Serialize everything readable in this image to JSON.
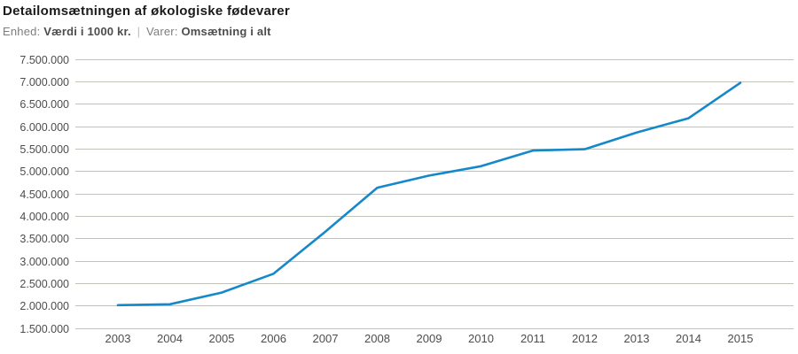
{
  "header": {
    "title": "Detailomsætningen af økologiske fødevarer",
    "meta": {
      "unit_label": "Enhed:",
      "unit_value": "Værdi i 1000 kr.",
      "separator": "|",
      "varer_label": "Varer:",
      "varer_value": "Omsætning i alt"
    }
  },
  "chart_data": {
    "type": "line",
    "title": "Detailomsætningen af økologiske fødevarer",
    "subtitle": "Enhed: Værdi i 1000 kr. | Varer: Omsætning i alt",
    "xlabel": "",
    "ylabel": "Værdi i 1000 kr.",
    "categories": [
      "2003",
      "2004",
      "2005",
      "2006",
      "2007",
      "2008",
      "2009",
      "2010",
      "2011",
      "2012",
      "2013",
      "2014",
      "2015"
    ],
    "series": [
      {
        "name": "Omsætning i alt",
        "values": [
          2010000,
          2030000,
          2290000,
          2710000,
          3650000,
          4630000,
          4900000,
          5110000,
          5460000,
          5490000,
          5860000,
          6180000,
          6970000
        ]
      }
    ],
    "ylim": [
      1500000,
      7500000
    ],
    "y_tick_step": 500000,
    "y_tick_labels": [
      "1.500.000",
      "2.000.000",
      "2.500.000",
      "3.000.000",
      "3.500.000",
      "4.000.000",
      "4.500.000",
      "5.000.000",
      "5.500.000",
      "6.000.000",
      "6.500.000",
      "7.000.000",
      "7.500.000"
    ],
    "grid": "horizontal",
    "legend": "none",
    "colors": {
      "line": "#1588ca",
      "grid": "#c3c2b8",
      "tick_text": "#4d4d4d",
      "background": "#ffffff"
    }
  }
}
